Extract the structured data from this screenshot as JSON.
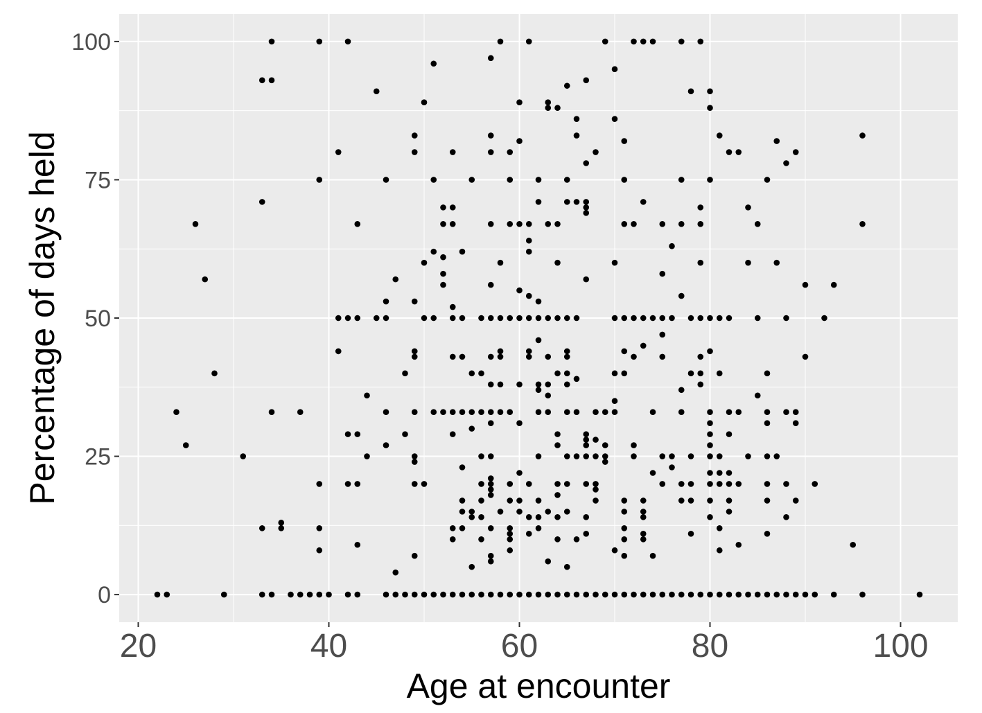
{
  "chart_data": {
    "type": "scatter",
    "title": "",
    "xlabel": "Age at encounter",
    "ylabel": "Percentage of days held",
    "xlim": [
      18,
      106
    ],
    "ylim": [
      -5,
      105
    ],
    "x_ticks": [
      20,
      40,
      60,
      80,
      100
    ],
    "y_ticks": [
      0,
      25,
      50,
      75,
      100
    ],
    "x_tick_labels": [
      "20",
      "40",
      "60",
      "80",
      "100"
    ],
    "y_tick_labels": [
      "0",
      "25",
      "50",
      "75",
      "100"
    ],
    "grid": true,
    "legend": "none",
    "colors": {
      "panel": "#ebebeb",
      "grid": "#ffffff",
      "point": "#000000",
      "tick_label": "#4d4d4d"
    },
    "points": [
      [
        22,
        0
      ],
      [
        23,
        0
      ],
      [
        29,
        0
      ],
      [
        33,
        0
      ],
      [
        34,
        0
      ],
      [
        36,
        0
      ],
      [
        37,
        0
      ],
      [
        38,
        0
      ],
      [
        39,
        0
      ],
      [
        40,
        0
      ],
      [
        42,
        0
      ],
      [
        43,
        0
      ],
      [
        46,
        0
      ],
      [
        47,
        0
      ],
      [
        48,
        0
      ],
      [
        49,
        0
      ],
      [
        50,
        0
      ],
      [
        51,
        0
      ],
      [
        52,
        0
      ],
      [
        53,
        0
      ],
      [
        54,
        0
      ],
      [
        55,
        0
      ],
      [
        56,
        0
      ],
      [
        57,
        0
      ],
      [
        58,
        0
      ],
      [
        59,
        0
      ],
      [
        60,
        0
      ],
      [
        61,
        0
      ],
      [
        62,
        0
      ],
      [
        63,
        0
      ],
      [
        64,
        0
      ],
      [
        65,
        0
      ],
      [
        66,
        0
      ],
      [
        67,
        0
      ],
      [
        68,
        0
      ],
      [
        69,
        0
      ],
      [
        70,
        0
      ],
      [
        71,
        0
      ],
      [
        72,
        0
      ],
      [
        73,
        0
      ],
      [
        74,
        0
      ],
      [
        75,
        0
      ],
      [
        76,
        0
      ],
      [
        77,
        0
      ],
      [
        78,
        0
      ],
      [
        79,
        0
      ],
      [
        80,
        0
      ],
      [
        81,
        0
      ],
      [
        82,
        0
      ],
      [
        83,
        0
      ],
      [
        84,
        0
      ],
      [
        85,
        0
      ],
      [
        86,
        0
      ],
      [
        87,
        0
      ],
      [
        88,
        0
      ],
      [
        89,
        0
      ],
      [
        90,
        0
      ],
      [
        91,
        0
      ],
      [
        93,
        0
      ],
      [
        96,
        0
      ],
      [
        102,
        0
      ],
      [
        47,
        4
      ],
      [
        55,
        5
      ],
      [
        57,
        6
      ],
      [
        65,
        5
      ],
      [
        63,
        6
      ],
      [
        49,
        7
      ],
      [
        57,
        7
      ],
      [
        70,
        8
      ],
      [
        71,
        7
      ],
      [
        74,
        7
      ],
      [
        39,
        8
      ],
      [
        59,
        8
      ],
      [
        81,
        8
      ],
      [
        33,
        12
      ],
      [
        35,
        12
      ],
      [
        35,
        13
      ],
      [
        39,
        12
      ],
      [
        43,
        9
      ],
      [
        53,
        10
      ],
      [
        53,
        12
      ],
      [
        54,
        12
      ],
      [
        56,
        10
      ],
      [
        57,
        12
      ],
      [
        59,
        10
      ],
      [
        59,
        11
      ],
      [
        59,
        12
      ],
      [
        61,
        11
      ],
      [
        62,
        12
      ],
      [
        64,
        10
      ],
      [
        66,
        10
      ],
      [
        67,
        11
      ],
      [
        71,
        10
      ],
      [
        71,
        12
      ],
      [
        73,
        10
      ],
      [
        73,
        11
      ],
      [
        78,
        11
      ],
      [
        81,
        12
      ],
      [
        83,
        9
      ],
      [
        86,
        11
      ],
      [
        95,
        9
      ],
      [
        54,
        15
      ],
      [
        54,
        17
      ],
      [
        55,
        14
      ],
      [
        55,
        15
      ],
      [
        56,
        14
      ],
      [
        56,
        17
      ],
      [
        57,
        18
      ],
      [
        57,
        19
      ],
      [
        58,
        15
      ],
      [
        59,
        17
      ],
      [
        60,
        15
      ],
      [
        60,
        17
      ],
      [
        61,
        14
      ],
      [
        62,
        14
      ],
      [
        62,
        17
      ],
      [
        63,
        15
      ],
      [
        64,
        14
      ],
      [
        64,
        18
      ],
      [
        65,
        15
      ],
      [
        67,
        14
      ],
      [
        68,
        17
      ],
      [
        71,
        15
      ],
      [
        71,
        17
      ],
      [
        73,
        14
      ],
      [
        73,
        15
      ],
      [
        73,
        17
      ],
      [
        77,
        17
      ],
      [
        78,
        17
      ],
      [
        80,
        14
      ],
      [
        80,
        17
      ],
      [
        82,
        15
      ],
      [
        82,
        17
      ],
      [
        86,
        17
      ],
      [
        88,
        14
      ],
      [
        89,
        17
      ],
      [
        39,
        20
      ],
      [
        42,
        20
      ],
      [
        43,
        20
      ],
      [
        49,
        20
      ],
      [
        50,
        20
      ],
      [
        56,
        20
      ],
      [
        57,
        20
      ],
      [
        57,
        21
      ],
      [
        59,
        20
      ],
      [
        60,
        22
      ],
      [
        61,
        20
      ],
      [
        64,
        20
      ],
      [
        65,
        20
      ],
      [
        67,
        20
      ],
      [
        68,
        19
      ],
      [
        68,
        20
      ],
      [
        74,
        22
      ],
      [
        75,
        20
      ],
      [
        77,
        20
      ],
      [
        78,
        20
      ],
      [
        80,
        20
      ],
      [
        80,
        22
      ],
      [
        81,
        20
      ],
      [
        81,
        22
      ],
      [
        82,
        20
      ],
      [
        82,
        22
      ],
      [
        83,
        20
      ],
      [
        86,
        20
      ],
      [
        88,
        20
      ],
      [
        91,
        20
      ],
      [
        25,
        27
      ],
      [
        31,
        25
      ],
      [
        44,
        25
      ],
      [
        46,
        27
      ],
      [
        49,
        24
      ],
      [
        49,
        25
      ],
      [
        53,
        29
      ],
      [
        54,
        23
      ],
      [
        55,
        30
      ],
      [
        56,
        25
      ],
      [
        57,
        25
      ],
      [
        62,
        25
      ],
      [
        64,
        27
      ],
      [
        64,
        29
      ],
      [
        65,
        25
      ],
      [
        66,
        25
      ],
      [
        67,
        25
      ],
      [
        67,
        27
      ],
      [
        67,
        28
      ],
      [
        67,
        29
      ],
      [
        68,
        25
      ],
      [
        68,
        28
      ],
      [
        69,
        24
      ],
      [
        69,
        25
      ],
      [
        69,
        27
      ],
      [
        72,
        25
      ],
      [
        72,
        27
      ],
      [
        75,
        25
      ],
      [
        76,
        23
      ],
      [
        76,
        25
      ],
      [
        78,
        25
      ],
      [
        80,
        25
      ],
      [
        80,
        27
      ],
      [
        80,
        29
      ],
      [
        81,
        25
      ],
      [
        82,
        29
      ],
      [
        84,
        25
      ],
      [
        86,
        25
      ],
      [
        87,
        25
      ],
      [
        24,
        33
      ],
      [
        34,
        33
      ],
      [
        37,
        33
      ],
      [
        42,
        29
      ],
      [
        43,
        29
      ],
      [
        44,
        36
      ],
      [
        46,
        33
      ],
      [
        48,
        29
      ],
      [
        49,
        33
      ],
      [
        51,
        33
      ],
      [
        52,
        33
      ],
      [
        53,
        33
      ],
      [
        54,
        33
      ],
      [
        55,
        33
      ],
      [
        56,
        33
      ],
      [
        57,
        31
      ],
      [
        57,
        33
      ],
      [
        58,
        33
      ],
      [
        59,
        33
      ],
      [
        60,
        31
      ],
      [
        62,
        33
      ],
      [
        63,
        33
      ],
      [
        65,
        33
      ],
      [
        66,
        33
      ],
      [
        68,
        33
      ],
      [
        69,
        33
      ],
      [
        70,
        33
      ],
      [
        70,
        35
      ],
      [
        74,
        33
      ],
      [
        77,
        33
      ],
      [
        80,
        31
      ],
      [
        80,
        33
      ],
      [
        82,
        33
      ],
      [
        83,
        33
      ],
      [
        85,
        36
      ],
      [
        86,
        31
      ],
      [
        86,
        33
      ],
      [
        88,
        33
      ],
      [
        89,
        31
      ],
      [
        89,
        33
      ],
      [
        28,
        40
      ],
      [
        41,
        44
      ],
      [
        48,
        40
      ],
      [
        49,
        43
      ],
      [
        49,
        44
      ],
      [
        53,
        43
      ],
      [
        54,
        43
      ],
      [
        55,
        40
      ],
      [
        56,
        40
      ],
      [
        57,
        38
      ],
      [
        57,
        43
      ],
      [
        58,
        38
      ],
      [
        58,
        43
      ],
      [
        58,
        44
      ],
      [
        60,
        38
      ],
      [
        61,
        43
      ],
      [
        61,
        44
      ],
      [
        62,
        37
      ],
      [
        62,
        38
      ],
      [
        62,
        46
      ],
      [
        63,
        36
      ],
      [
        63,
        38
      ],
      [
        63,
        43
      ],
      [
        64,
        40
      ],
      [
        65,
        38
      ],
      [
        65,
        40
      ],
      [
        65,
        43
      ],
      [
        65,
        44
      ],
      [
        66,
        39
      ],
      [
        70,
        40
      ],
      [
        71,
        40
      ],
      [
        71,
        44
      ],
      [
        72,
        43
      ],
      [
        73,
        45
      ],
      [
        75,
        43
      ],
      [
        75,
        47
      ],
      [
        77,
        37
      ],
      [
        78,
        40
      ],
      [
        79,
        38
      ],
      [
        79,
        40
      ],
      [
        79,
        43
      ],
      [
        80,
        44
      ],
      [
        81,
        40
      ],
      [
        86,
        40
      ],
      [
        90,
        43
      ],
      [
        41,
        50
      ],
      [
        42,
        50
      ],
      [
        43,
        50
      ],
      [
        45,
        50
      ],
      [
        46,
        50
      ],
      [
        46,
        53
      ],
      [
        47,
        57
      ],
      [
        49,
        53
      ],
      [
        50,
        50
      ],
      [
        50,
        60
      ],
      [
        51,
        50
      ],
      [
        51,
        62
      ],
      [
        52,
        56
      ],
      [
        52,
        58
      ],
      [
        52,
        61
      ],
      [
        53,
        50
      ],
      [
        53,
        52
      ],
      [
        54,
        50
      ],
      [
        54,
        62
      ],
      [
        56,
        50
      ],
      [
        57,
        50
      ],
      [
        57,
        56
      ],
      [
        58,
        50
      ],
      [
        58,
        60
      ],
      [
        59,
        50
      ],
      [
        60,
        50
      ],
      [
        60,
        55
      ],
      [
        61,
        50
      ],
      [
        61,
        54
      ],
      [
        62,
        50
      ],
      [
        62,
        53
      ],
      [
        63,
        50
      ],
      [
        64,
        50
      ],
      [
        64,
        60
      ],
      [
        65,
        50
      ],
      [
        66,
        50
      ],
      [
        67,
        57
      ],
      [
        70,
        50
      ],
      [
        70,
        60
      ],
      [
        71,
        50
      ],
      [
        72,
        50
      ],
      [
        73,
        50
      ],
      [
        74,
        50
      ],
      [
        75,
        50
      ],
      [
        75,
        58
      ],
      [
        76,
        50
      ],
      [
        77,
        54
      ],
      [
        78,
        50
      ],
      [
        79,
        50
      ],
      [
        79,
        60
      ],
      [
        80,
        50
      ],
      [
        81,
        50
      ],
      [
        82,
        50
      ],
      [
        84,
        60
      ],
      [
        85,
        50
      ],
      [
        87,
        60
      ],
      [
        88,
        50
      ],
      [
        90,
        56
      ],
      [
        92,
        50
      ],
      [
        93,
        56
      ],
      [
        26,
        67
      ],
      [
        27,
        57
      ],
      [
        33,
        71
      ],
      [
        43,
        67
      ],
      [
        52,
        67
      ],
      [
        52,
        70
      ],
      [
        53,
        67
      ],
      [
        53,
        70
      ],
      [
        57,
        67
      ],
      [
        59,
        67
      ],
      [
        60,
        67
      ],
      [
        61,
        62
      ],
      [
        61,
        64
      ],
      [
        61,
        67
      ],
      [
        62,
        71
      ],
      [
        63,
        67
      ],
      [
        64,
        67
      ],
      [
        65,
        71
      ],
      [
        66,
        71
      ],
      [
        67,
        69
      ],
      [
        67,
        70
      ],
      [
        67,
        71
      ],
      [
        71,
        67
      ],
      [
        72,
        67
      ],
      [
        73,
        71
      ],
      [
        75,
        67
      ],
      [
        76,
        63
      ],
      [
        77,
        67
      ],
      [
        79,
        67
      ],
      [
        79,
        70
      ],
      [
        84,
        70
      ],
      [
        85,
        67
      ],
      [
        96,
        67
      ],
      [
        39,
        75
      ],
      [
        41,
        80
      ],
      [
        46,
        75
      ],
      [
        49,
        80
      ],
      [
        49,
        83
      ],
      [
        51,
        75
      ],
      [
        53,
        80
      ],
      [
        55,
        75
      ],
      [
        57,
        80
      ],
      [
        57,
        83
      ],
      [
        59,
        75
      ],
      [
        59,
        80
      ],
      [
        60,
        82
      ],
      [
        62,
        75
      ],
      [
        65,
        75
      ],
      [
        66,
        83
      ],
      [
        66,
        86
      ],
      [
        67,
        78
      ],
      [
        68,
        80
      ],
      [
        70,
        86
      ],
      [
        71,
        75
      ],
      [
        71,
        82
      ],
      [
        77,
        75
      ],
      [
        80,
        75
      ],
      [
        81,
        83
      ],
      [
        82,
        80
      ],
      [
        83,
        80
      ],
      [
        86,
        75
      ],
      [
        87,
        82
      ],
      [
        88,
        78
      ],
      [
        89,
        80
      ],
      [
        96,
        83
      ],
      [
        33,
        93
      ],
      [
        34,
        93
      ],
      [
        34,
        100
      ],
      [
        39,
        100
      ],
      [
        42,
        100
      ],
      [
        45,
        91
      ],
      [
        50,
        89
      ],
      [
        51,
        96
      ],
      [
        57,
        97
      ],
      [
        58,
        100
      ],
      [
        60,
        89
      ],
      [
        61,
        100
      ],
      [
        63,
        88
      ],
      [
        63,
        89
      ],
      [
        64,
        88
      ],
      [
        65,
        92
      ],
      [
        67,
        93
      ],
      [
        69,
        100
      ],
      [
        70,
        95
      ],
      [
        72,
        100
      ],
      [
        73,
        100
      ],
      [
        74,
        100
      ],
      [
        77,
        100
      ],
      [
        78,
        91
      ],
      [
        79,
        100
      ],
      [
        80,
        88
      ],
      [
        80,
        91
      ]
    ]
  }
}
